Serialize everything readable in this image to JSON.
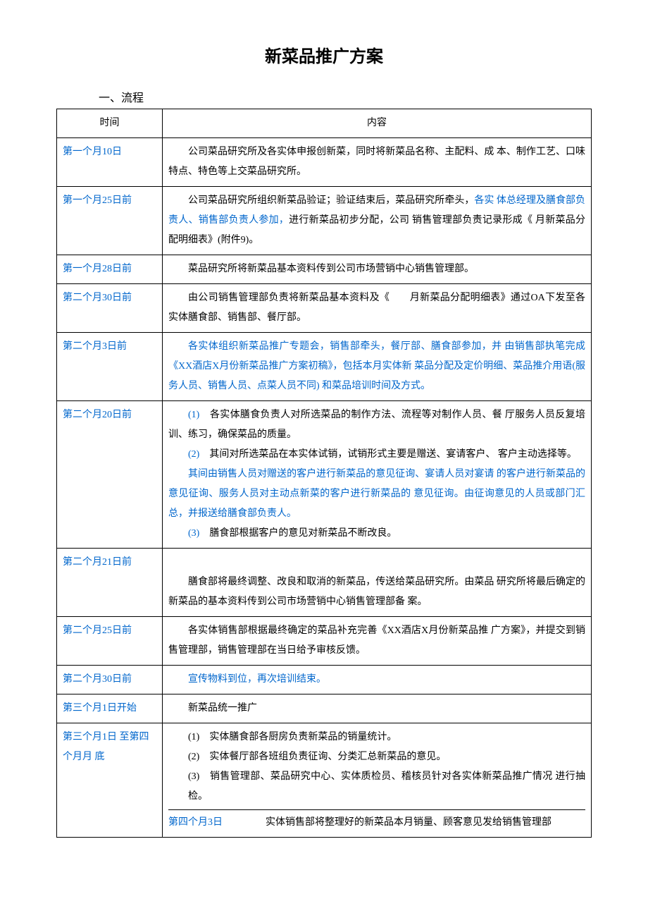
{
  "title": "新菜品推广方案",
  "section_heading": "一、流程",
  "headers": {
    "time": "时间",
    "content": "内容"
  },
  "rows": [
    {
      "time": "第一个月10日",
      "time_class": "blue",
      "content_parts": [
        {
          "text": "公司菜品研究所及各实体申报创新菜，同时将新菜品名称、主配料、成 本、制作工艺、口味特点、特色等上交菜品研究所。",
          "class": ""
        }
      ]
    },
    {
      "time": "第一个月25日前",
      "time_class": "blue",
      "content_parts": [
        {
          "text": "公司菜品研究所组织新菜品验证；验证结束后，菜品研究所牵头，",
          "class": ""
        },
        {
          "text": "各实 体总经理及膳食部负责人、销售部负责人参加，",
          "class": "blue"
        },
        {
          "text": "进行新菜品初步分配，公司 销售管理部负责记录形成《 月新菜品分配明细表》(附件9)。",
          "class": ""
        }
      ]
    },
    {
      "time": "第一个月28日前",
      "time_class": "blue",
      "content_parts": [
        {
          "text": "菜品研究所将新菜品基本资料传到公司市场营销中心销售管理部。",
          "class": ""
        }
      ]
    },
    {
      "time": "第二个月30日前",
      "time_class": "blue",
      "content_parts": [
        {
          "text": "由公司销售管理部负责将新菜品基本资料及《　　月新菜品分配明细表》通过OA下发至各实体膳食部、销售部、餐厅部。",
          "class": ""
        }
      ]
    },
    {
      "time": "第二个月3日前",
      "time_class": "blue",
      "content_parts": [
        {
          "text": "各实体组织新菜品推广专题会，销售部牵头，餐厅部、膳食部参加，并 由销售部执笔完成《XX酒店X月份新菜品推广方案初稿》，包括本月实体新 菜品分配及定价明细、菜品推介用语(服务人员、销售人员、点菜人员不同) 和菜品培训时间及方式。",
          "class": "blue"
        }
      ]
    }
  ],
  "row_m2_20": {
    "time": "第二个月20日前",
    "p1_label": "(1)　",
    "p1_text": "各实体膳食负责人对所选菜品的制作方法、流程等对制作人员、餐 厅服务人员反复培训、练习，确保菜品的质量。",
    "p2_label": "(2)　",
    "p2_text": "其间对所选菜品在本实体试销，试销形式主要是赠送、宴请客户、 客户主动选择等。",
    "p3_text": "其间由销售人员对赠送的客户进行新菜品的意见征询、宴请人员对宴请 的客户进行新菜品的意见征询、服务人员对主动点新菜的客户进行新菜品的 意见征询。由征询意见的人员或部门汇总，并报送给膳食部负责人。",
    "p4_label": "(3)　",
    "p4_text": "膳食部根据客户的意见对新菜品不断改良。"
  },
  "row_m2_21": {
    "time": "第二个月21日前",
    "text": "膳食部将最终调整、改良和取消的新菜品，传送给菜品研究所。由菜品 研究所将最后确定的新菜品的基本资料传到公司市场营销中心销售管理部备 案。"
  },
  "row_m2_25": {
    "time": "第二个月25日前",
    "text": "各实体销售部根据最终确定的菜品补充完善《XX酒店X月份新菜品推 广方案》，并提交到销售管理部，销售管理部在当日给予审核反馈。"
  },
  "row_m2_30b": {
    "time": "第二个月30日前",
    "text": "宣传物料到位，再次培训结束。"
  },
  "row_m3_1": {
    "time": "第三个月1日开始",
    "text": "新菜品统一推广"
  },
  "row_final": {
    "time": "第三个月1日 至第四个月月 底",
    "p1": "(1)　实体膳食部各厨房负责新菜品的销量统计。",
    "p2": "(2)　实体餐厅部各班组负责征询、分类汇总新菜品的意见。",
    "p3": "(3)　销售管理部、菜品研究中心、实体质检员、稽核员针对各实体新菜品推广情况 进行抽检。",
    "nested_time": "第四个月3日",
    "nested_text": "实体销售部将整理好的新菜品本月销量、顾客意见发给销售管理部"
  },
  "colors": {
    "link_blue": "#0066cc",
    "text_black": "#000000",
    "border": "#000000",
    "background": "#ffffff"
  },
  "typography": {
    "title_fontsize": 24,
    "body_fontsize": 14,
    "line_height": 2.0,
    "font_family": "SimSun"
  }
}
